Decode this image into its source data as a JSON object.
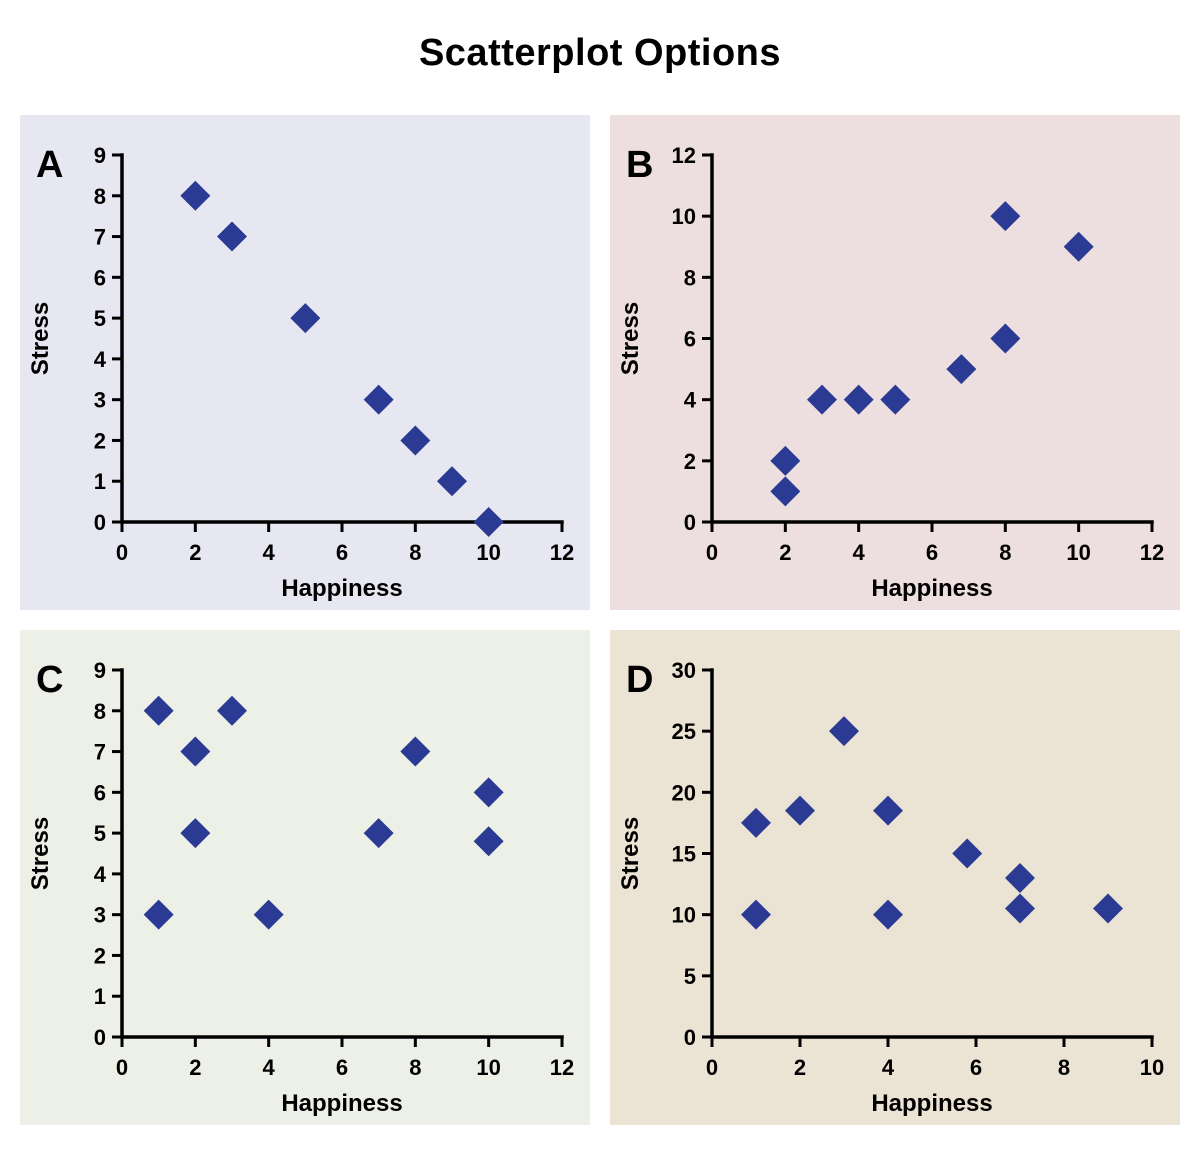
{
  "title": "Scatterplot Options",
  "colors": {
    "marker": "#2b3b94",
    "axis": "#000000",
    "panel_a_bg": "#e7e7f1",
    "panel_b_bg": "#eddee0",
    "panel_c_bg": "#edf0e6",
    "panel_d_bg": "#ebe4d4"
  },
  "chart_data": [
    {
      "type": "scatter",
      "label": "A",
      "bg": "#e7e7f1",
      "xlabel": "Happiness",
      "ylabel": "Stress",
      "xlim": [
        0,
        12
      ],
      "ylim": [
        0,
        9
      ],
      "xticks": [
        0,
        2,
        4,
        6,
        8,
        10,
        12
      ],
      "yticks": [
        0,
        1,
        2,
        3,
        4,
        5,
        6,
        7,
        8,
        9
      ],
      "points": [
        [
          2,
          8
        ],
        [
          3,
          7
        ],
        [
          5,
          5
        ],
        [
          7,
          3
        ],
        [
          8,
          2
        ],
        [
          9,
          1
        ],
        [
          10,
          0
        ]
      ]
    },
    {
      "type": "scatter",
      "label": "B",
      "bg": "#eddee0",
      "xlabel": "Happiness",
      "ylabel": "Stress",
      "xlim": [
        0,
        12
      ],
      "ylim": [
        0,
        12
      ],
      "xticks": [
        0,
        2,
        4,
        6,
        8,
        10,
        12
      ],
      "yticks": [
        0,
        2,
        4,
        6,
        8,
        10,
        12
      ],
      "points": [
        [
          2,
          1
        ],
        [
          2,
          2
        ],
        [
          3,
          4
        ],
        [
          4,
          4
        ],
        [
          5,
          4
        ],
        [
          6.8,
          5
        ],
        [
          8,
          6
        ],
        [
          8,
          10
        ],
        [
          10,
          9
        ]
      ]
    },
    {
      "type": "scatter",
      "label": "C",
      "bg": "#edf0e6",
      "xlabel": "Happiness",
      "ylabel": "Stress",
      "xlim": [
        0,
        12
      ],
      "ylim": [
        0,
        9
      ],
      "xticks": [
        0,
        2,
        4,
        6,
        8,
        10,
        12
      ],
      "yticks": [
        0,
        1,
        2,
        3,
        4,
        5,
        6,
        7,
        8,
        9
      ],
      "points": [
        [
          1,
          3
        ],
        [
          1,
          8
        ],
        [
          2,
          5
        ],
        [
          2,
          7
        ],
        [
          3,
          8
        ],
        [
          4,
          3
        ],
        [
          7,
          5
        ],
        [
          8,
          7
        ],
        [
          10,
          4.8
        ],
        [
          10,
          6
        ]
      ]
    },
    {
      "type": "scatter",
      "label": "D",
      "bg": "#ebe4d4",
      "xlabel": "Happiness",
      "ylabel": "Stress",
      "xlim": [
        0,
        10
      ],
      "ylim": [
        0,
        30
      ],
      "xticks": [
        0,
        2,
        4,
        6,
        8,
        10
      ],
      "yticks": [
        0,
        5,
        10,
        15,
        20,
        25,
        30
      ],
      "points": [
        [
          1,
          10
        ],
        [
          1,
          17.5
        ],
        [
          2,
          18.5
        ],
        [
          3,
          25
        ],
        [
          4,
          10
        ],
        [
          4,
          18.5
        ],
        [
          5.8,
          15
        ],
        [
          7,
          10.5
        ],
        [
          7,
          13
        ],
        [
          9,
          10.5
        ]
      ]
    }
  ]
}
